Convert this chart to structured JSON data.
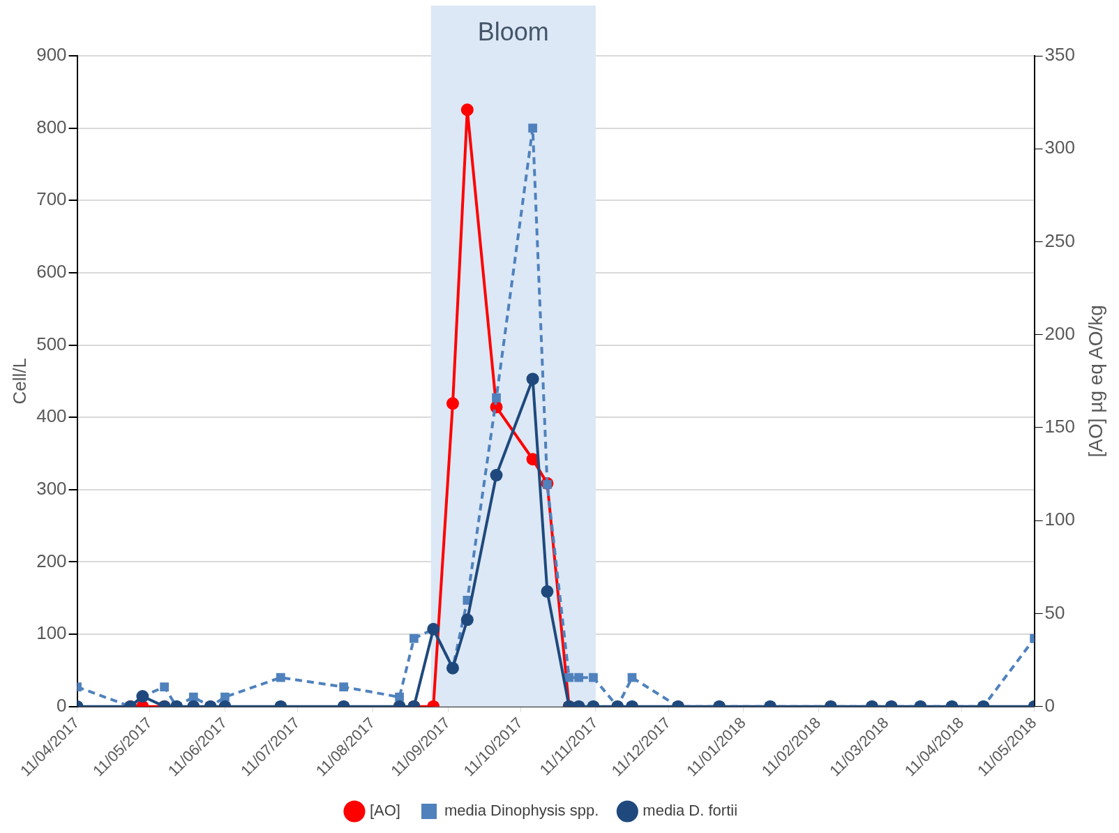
{
  "chart_data": {
    "type": "line",
    "ylabel": "Cell/L",
    "y2label": "[AO] µg eq AO/kg",
    "x": [
      "2017-04-11",
      "2017-05-03",
      "2017-05-08",
      "2017-05-17",
      "2017-05-22",
      "2017-05-29",
      "2017-06-05",
      "2017-06-11",
      "2017-07-04",
      "2017-07-30",
      "2017-08-22",
      "2017-08-28",
      "2017-09-05",
      "2017-09-13",
      "2017-09-19",
      "2017-10-01",
      "2017-10-16",
      "2017-10-22",
      "2017-10-31",
      "2017-11-04",
      "2017-11-10",
      "2017-11-20",
      "2017-11-26",
      "2017-12-15",
      "2018-01-01",
      "2018-01-22",
      "2018-02-16",
      "2018-03-05",
      "2018-03-13",
      "2018-03-25",
      "2018-04-07",
      "2018-04-20",
      "2018-05-11"
    ],
    "series": [
      {
        "name": "[AO]",
        "color": "#ff0000",
        "axis": "y2",
        "marker": "circle",
        "line_style": "solid",
        "values": [
          null,
          0,
          0,
          0,
          null,
          null,
          null,
          null,
          null,
          null,
          null,
          0,
          0,
          163,
          321,
          161,
          133,
          120,
          0,
          null,
          null,
          null,
          null,
          null,
          null,
          null,
          null,
          null,
          null,
          null,
          null,
          null,
          null
        ]
      },
      {
        "name": "media Dinophysis spp.",
        "color": "#4f81bd",
        "marker": "square",
        "line_style": "dashed",
        "values": [
          27,
          0,
          14,
          27,
          0,
          13,
          0,
          13,
          40,
          27,
          13,
          94,
          107,
          53,
          147,
          427,
          800,
          307,
          40,
          40,
          40,
          0,
          40,
          0,
          0,
          0,
          0,
          0,
          0,
          0,
          0,
          0,
          94
        ]
      },
      {
        "name": "media D. fortii",
        "color": "#1f497d",
        "marker": "circle",
        "line_style": "solid",
        "values": [
          0,
          0,
          14,
          0,
          0,
          0,
          0,
          0,
          0,
          0,
          0,
          0,
          107,
          53,
          120,
          320,
          453,
          159,
          0,
          0,
          0,
          0,
          0,
          0,
          0,
          0,
          0,
          0,
          0,
          0,
          0,
          0,
          0
        ]
      }
    ],
    "xlim": [
      "2017-04-11",
      "2018-05-11"
    ],
    "xticks": [
      {
        "value": "2017-04-11",
        "label": "11/04/2017"
      },
      {
        "value": "2017-05-11",
        "label": "11/05/2017"
      },
      {
        "value": "2017-06-11",
        "label": "11/06/2017"
      },
      {
        "value": "2017-07-11",
        "label": "11/07/2017"
      },
      {
        "value": "2017-08-11",
        "label": "11/08/2017"
      },
      {
        "value": "2017-09-11",
        "label": "11/09/2017"
      },
      {
        "value": "2017-10-11",
        "label": "11/10/2017"
      },
      {
        "value": "2017-11-11",
        "label": "11/11/2017"
      },
      {
        "value": "2017-12-11",
        "label": "11/12/2017"
      },
      {
        "value": "2018-01-11",
        "label": "11/01/2018"
      },
      {
        "value": "2018-02-11",
        "label": "11/02/2018"
      },
      {
        "value": "2018-03-11",
        "label": "11/03/2018"
      },
      {
        "value": "2018-04-11",
        "label": "11/04/2018"
      },
      {
        "value": "2018-05-11",
        "label": "11/05/2018"
      }
    ],
    "ylim": [
      0,
      900
    ],
    "yticks": [
      0,
      100,
      200,
      300,
      400,
      500,
      600,
      700,
      800,
      900
    ],
    "y2lim": [
      0,
      350
    ],
    "y2ticks": [
      0,
      50,
      100,
      150,
      200,
      250,
      300,
      350
    ],
    "bands": [
      {
        "axis": "x",
        "from": "2017-09-04",
        "to": "2017-11-11",
        "label": "Bloom",
        "color": "#dce8f5"
      }
    ],
    "grid": "y",
    "legend": "bottom"
  }
}
